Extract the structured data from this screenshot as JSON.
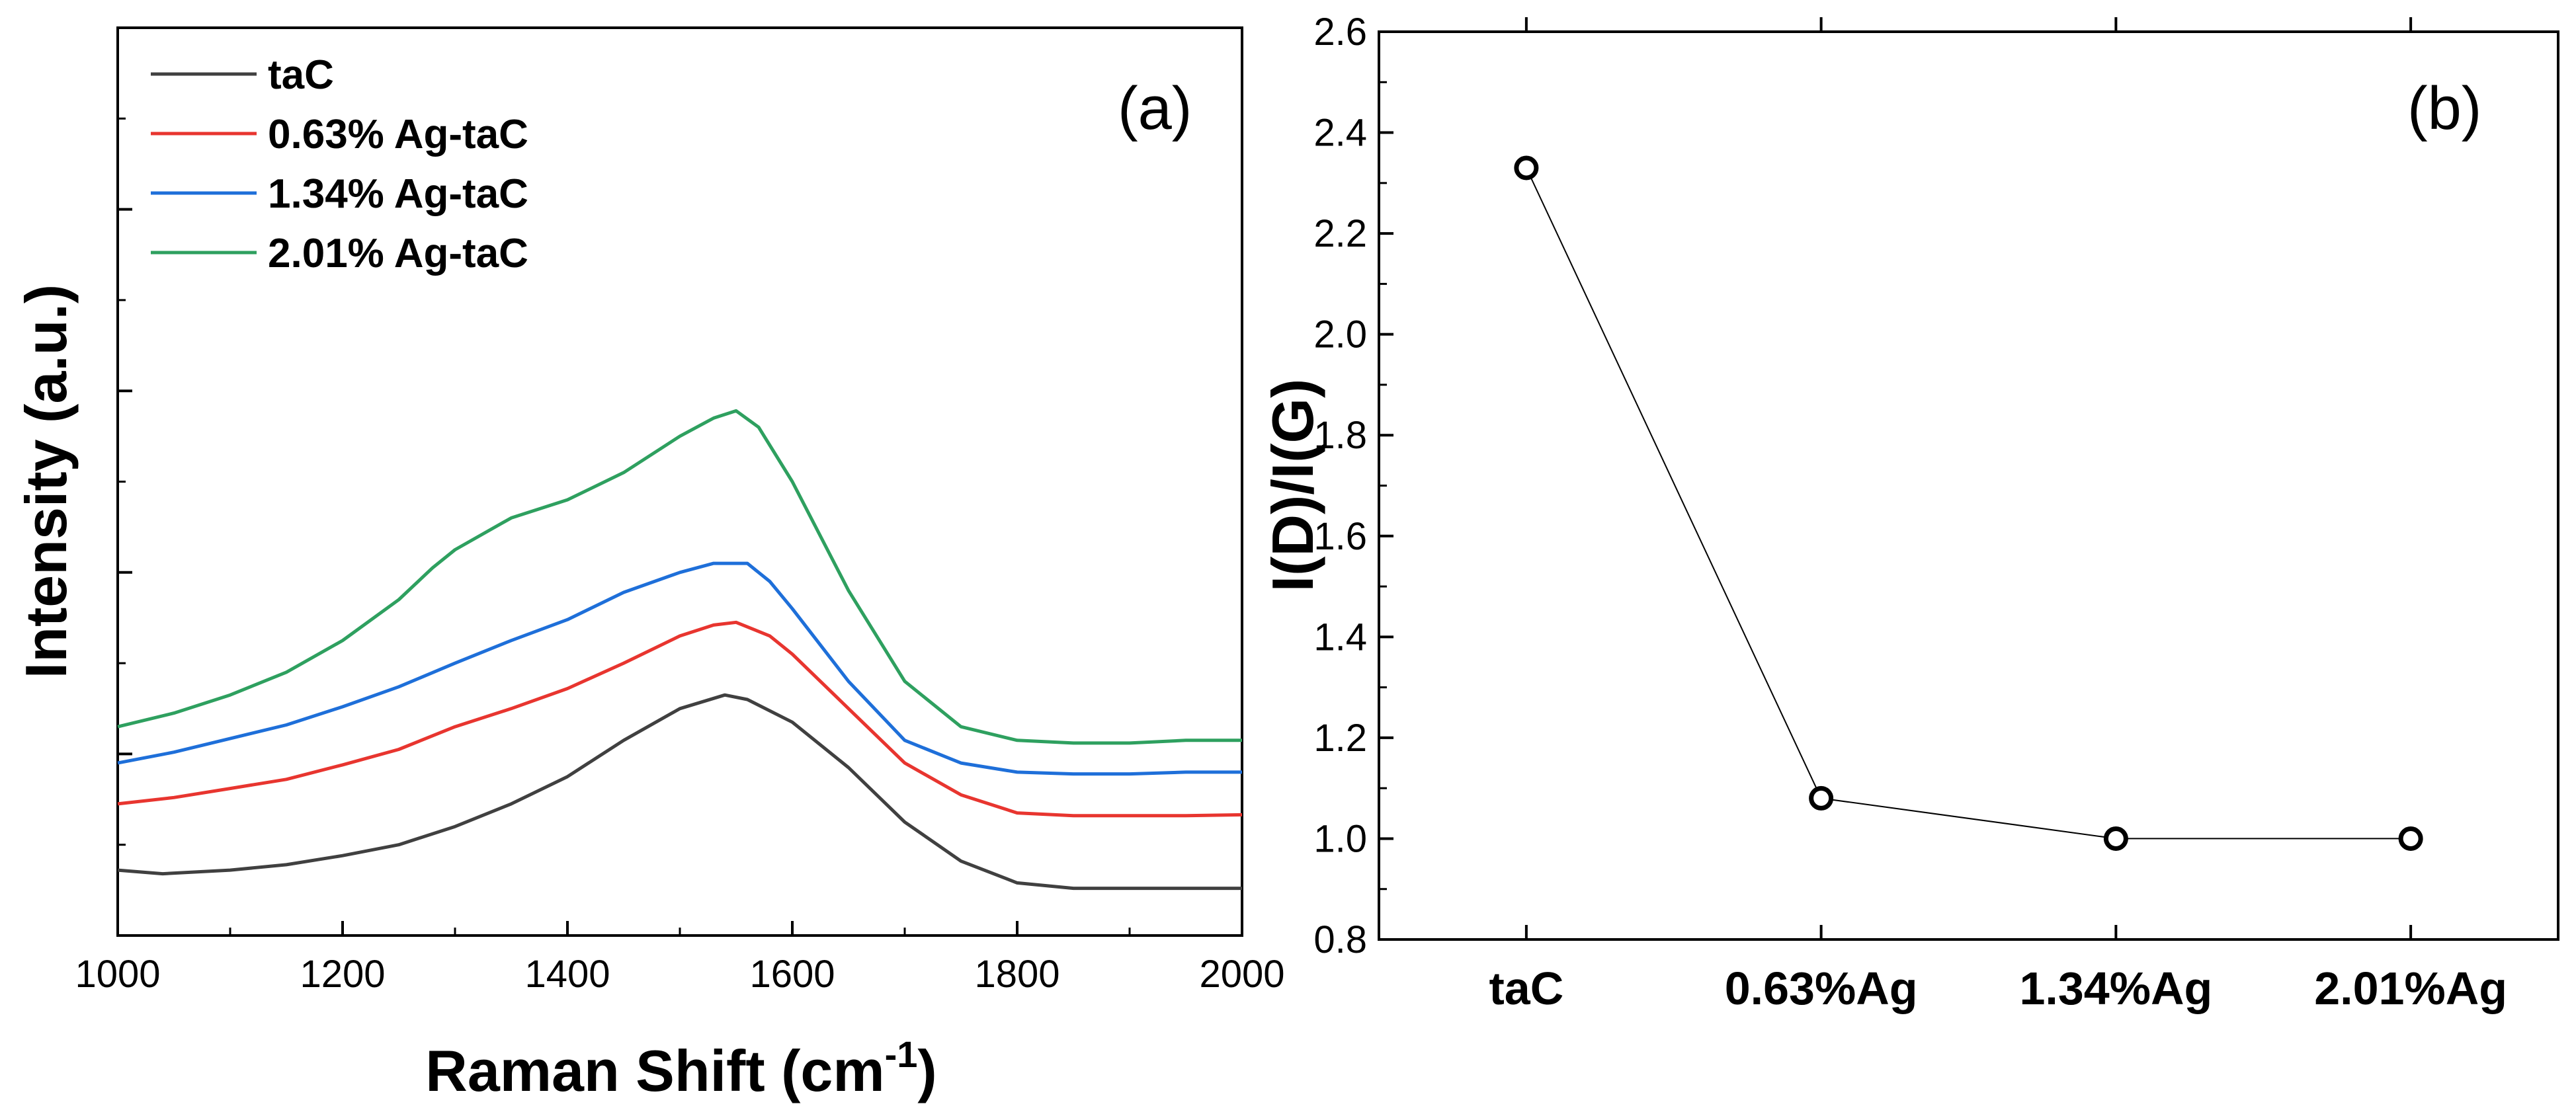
{
  "chart_data": [
    {
      "panel": "(a)",
      "type": "line",
      "xlabel": "Raman Shift (cm",
      "xlabel_sup": "-1",
      "xlabel_end": ")",
      "ylabel": "Intensity (a.u.)",
      "xlim": [
        1000,
        2000
      ],
      "ylim": [
        0,
        10
      ],
      "xticks": [
        1000,
        1200,
        1400,
        1600,
        1800,
        2000
      ],
      "yticks_labeled": false,
      "legend_position": "top-left",
      "series": [
        {
          "name": "taC",
          "color": "#404040",
          "x": [
            1000,
            1040,
            1100,
            1150,
            1200,
            1250,
            1300,
            1350,
            1400,
            1450,
            1500,
            1540,
            1560,
            1600,
            1650,
            1700,
            1750,
            1800,
            1850,
            1900,
            1950,
            2000
          ],
          "y": [
            0.72,
            0.68,
            0.72,
            0.78,
            0.88,
            1.0,
            1.2,
            1.45,
            1.75,
            2.15,
            2.5,
            2.65,
            2.6,
            2.35,
            1.85,
            1.25,
            0.82,
            0.58,
            0.52,
            0.52,
            0.52,
            0.52
          ]
        },
        {
          "name": "0.63% Ag-taC",
          "color": "#e8352f",
          "x": [
            1000,
            1050,
            1100,
            1150,
            1200,
            1250,
            1300,
            1350,
            1400,
            1450,
            1500,
            1530,
            1550,
            1580,
            1600,
            1650,
            1700,
            1750,
            1800,
            1850,
            1900,
            1950,
            2000
          ],
          "y": [
            1.45,
            1.52,
            1.62,
            1.72,
            1.88,
            2.05,
            2.3,
            2.5,
            2.72,
            3.0,
            3.3,
            3.42,
            3.45,
            3.3,
            3.1,
            2.5,
            1.9,
            1.55,
            1.35,
            1.32,
            1.32,
            1.32,
            1.33
          ]
        },
        {
          "name": "1.34% Ag-taC",
          "color": "#1e6fd9",
          "x": [
            1000,
            1050,
            1100,
            1150,
            1200,
            1250,
            1300,
            1350,
            1400,
            1450,
            1500,
            1530,
            1560,
            1580,
            1600,
            1650,
            1700,
            1750,
            1800,
            1850,
            1900,
            1950,
            2000
          ],
          "y": [
            1.9,
            2.02,
            2.17,
            2.32,
            2.52,
            2.74,
            3.0,
            3.25,
            3.48,
            3.78,
            4.0,
            4.1,
            4.1,
            3.9,
            3.6,
            2.8,
            2.15,
            1.9,
            1.8,
            1.78,
            1.78,
            1.8,
            1.8
          ]
        },
        {
          "name": "2.01% Ag-taC",
          "color": "#2ea05f",
          "x": [
            1000,
            1050,
            1100,
            1150,
            1200,
            1250,
            1280,
            1300,
            1350,
            1400,
            1450,
            1500,
            1530,
            1550,
            1570,
            1600,
            1650,
            1700,
            1750,
            1800,
            1850,
            1900,
            1950,
            2000
          ],
          "y": [
            2.3,
            2.45,
            2.65,
            2.9,
            3.25,
            3.7,
            4.05,
            4.25,
            4.6,
            4.8,
            5.1,
            5.5,
            5.7,
            5.78,
            5.6,
            5.0,
            3.8,
            2.8,
            2.3,
            2.15,
            2.12,
            2.12,
            2.15,
            2.15
          ]
        }
      ]
    },
    {
      "panel": "(b)",
      "type": "line",
      "ylabel": "I(D)/I(G)",
      "xlabel": "",
      "categories": [
        "taC",
        "0.63%Ag",
        "1.34%Ag",
        "2.01%Ag"
      ],
      "values": [
        2.33,
        1.08,
        1.0,
        1.0
      ],
      "ylim": [
        0.8,
        2.6
      ],
      "yticks": [
        "0.8",
        "1.0",
        "1.2",
        "1.4",
        "1.6",
        "1.8",
        "2.0",
        "2.2",
        "2.4",
        "2.6"
      ],
      "marker": "open-circle",
      "line_color": "#000000"
    }
  ]
}
